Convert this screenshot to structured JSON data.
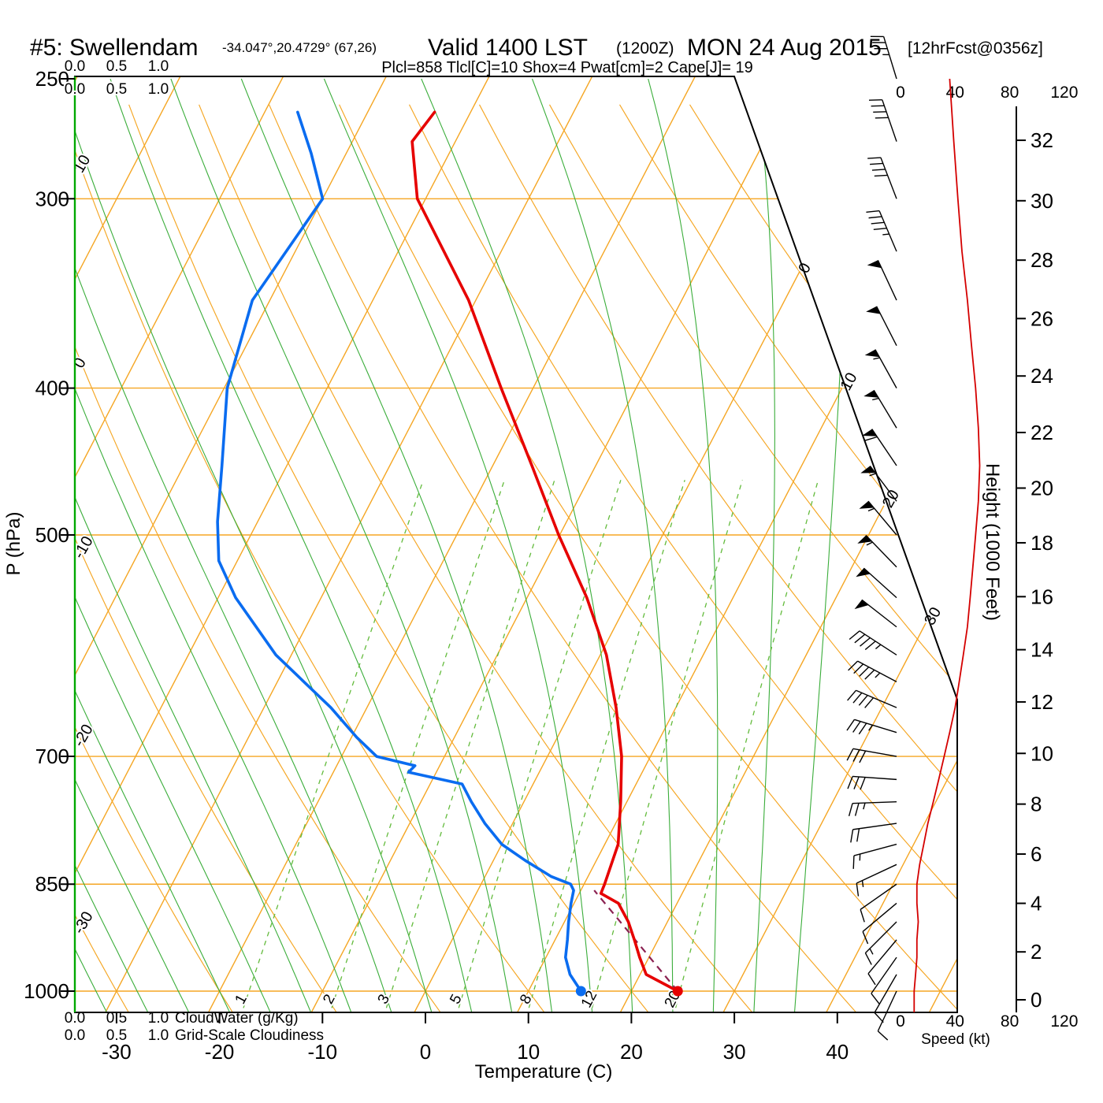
{
  "header": {
    "station": "#5: Swellendam",
    "coords": "-34.047°,20.4729° (67,26)",
    "valid": "Valid 1400 LST",
    "valid_z": "(1200Z)",
    "date": "MON 24 Aug 2015",
    "fcst": "[12hrFcst@0356z]",
    "params": "Plcl=858 Tlcl[C]=10 Shox=4 Pwat[cm]=2 Cape[J]= 19"
  },
  "axes": {
    "pressure_label": "P (hPa)",
    "temp_label": "Temperature (C)",
    "height_label": "Height (1000 Feet)",
    "speed_label": "Speed (kt)",
    "cloudwater_label": "CloudWater (g/Kg)",
    "cloudiness_label": "Grid-Scale Cloudiness"
  },
  "scales": {
    "pressure_ticks": [
      250,
      300,
      400,
      500,
      700,
      850,
      1000
    ],
    "temperature_ticks": [
      -30,
      -20,
      -10,
      0,
      10,
      20,
      30,
      40
    ],
    "height_ticks_kft": [
      0,
      2,
      4,
      6,
      8,
      10,
      12,
      14,
      16,
      18,
      20,
      22,
      24,
      26,
      28,
      30,
      32
    ],
    "speed_ticks_kt": [
      0,
      40,
      80,
      120
    ],
    "cloud_scale_ticks": [
      "0.0",
      "0.5",
      "1.0"
    ]
  },
  "chart_data": {
    "type": "skewt-logp",
    "pressure_range_hpa": [
      1000,
      250
    ],
    "isotherms_c": {
      "min": -100,
      "max": 60,
      "step": 10
    },
    "dry_adiabats_c": {
      "min": -60,
      "max": 150,
      "step": 10
    },
    "moist_adiabats_c": {
      "min": -32,
      "max": 36,
      "step": 4
    },
    "isotherm_labels_c": [
      0,
      10,
      20,
      30
    ],
    "dry_adiabat_labels_c": [
      10,
      0,
      -10,
      -20,
      -30
    ],
    "mixing_ratio_lines_gkg": [
      1,
      2,
      3,
      5,
      8,
      12,
      20
    ],
    "temperature_profile_p_c": [
      [
        1000,
        24.5
      ],
      [
        975,
        20.6
      ],
      [
        950,
        19.1
      ],
      [
        925,
        17.7
      ],
      [
        900,
        16.2
      ],
      [
        875,
        14.3
      ],
      [
        862,
        12.1
      ],
      [
        850,
        12.0
      ],
      [
        800,
        11.3
      ],
      [
        750,
        9.4
      ],
      [
        700,
        7.2
      ],
      [
        650,
        4.2
      ],
      [
        600,
        0.6
      ],
      [
        550,
        -4.2
      ],
      [
        500,
        -10.1
      ],
      [
        450,
        -16.2
      ],
      [
        400,
        -23.1
      ],
      [
        350,
        -30.7
      ],
      [
        300,
        -40.8
      ],
      [
        275,
        -44.2
      ],
      [
        263,
        -43.5
      ]
    ],
    "dewpoint_profile_p_c": [
      [
        1000,
        15.1
      ],
      [
        975,
        13.2
      ],
      [
        950,
        11.9
      ],
      [
        925,
        11.2
      ],
      [
        900,
        10.4
      ],
      [
        875,
        9.7
      ],
      [
        858,
        9.3
      ],
      [
        850,
        8.7
      ],
      [
        840,
        6.4
      ],
      [
        820,
        3.1
      ],
      [
        800,
        0.0
      ],
      [
        775,
        -2.7
      ],
      [
        750,
        -5.1
      ],
      [
        730,
        -6.9
      ],
      [
        717,
        -12.7
      ],
      [
        710,
        -12.4
      ],
      [
        700,
        -16.6
      ],
      [
        680,
        -19.5
      ],
      [
        650,
        -23.5
      ],
      [
        600,
        -31.5
      ],
      [
        550,
        -38.3
      ],
      [
        520,
        -41.8
      ],
      [
        490,
        -43.9
      ],
      [
        450,
        -46.3
      ],
      [
        400,
        -49.7
      ],
      [
        350,
        -51.7
      ],
      [
        300,
        -50.0
      ],
      [
        280,
        -53.4
      ],
      [
        263,
        -56.8
      ]
    ],
    "parcel_path_p_c": [
      [
        1000,
        24.5
      ],
      [
        858,
        11.3
      ]
    ],
    "surface_dots": {
      "temperature": [
        1000,
        24.5
      ],
      "dewpoint": [
        1000,
        15.1
      ]
    },
    "winds_p_dir_kt": [
      [
        1000,
        205,
        10
      ],
      [
        975,
        210,
        11
      ],
      [
        950,
        215,
        12
      ],
      [
        925,
        220,
        12
      ],
      [
        900,
        225,
        13
      ],
      [
        875,
        230,
        12
      ],
      [
        850,
        235,
        12
      ],
      [
        825,
        245,
        14
      ],
      [
        800,
        255,
        17
      ],
      [
        775,
        262,
        20
      ],
      [
        750,
        268,
        24
      ],
      [
        725,
        274,
        28
      ],
      [
        700,
        280,
        32
      ],
      [
        675,
        287,
        36
      ],
      [
        650,
        293,
        40
      ],
      [
        625,
        298,
        43
      ],
      [
        600,
        303,
        46
      ],
      [
        575,
        308,
        49
      ],
      [
        550,
        312,
        51
      ],
      [
        525,
        316,
        53
      ],
      [
        500,
        320,
        55
      ],
      [
        475,
        323,
        57
      ],
      [
        450,
        326,
        58
      ],
      [
        425,
        329,
        57
      ],
      [
        400,
        331,
        55
      ],
      [
        375,
        333,
        52
      ],
      [
        350,
        335,
        49
      ],
      [
        325,
        337,
        45
      ],
      [
        300,
        339,
        42
      ],
      [
        275,
        341,
        39
      ],
      [
        250,
        343,
        36
      ]
    ]
  },
  "colors": {
    "isolines_orange": "#f5a623",
    "moist_green": "#3aad3a",
    "mixing_green": "#63bb3c",
    "cloud_green": "#00a800",
    "temperature_red": "#e60000",
    "dewpoint_blue": "#0a6cf0",
    "parcel_magenta": "#8b2252",
    "params_magenta": "#b01060",
    "speed_red": "#d40000",
    "barb_black": "#000000"
  }
}
